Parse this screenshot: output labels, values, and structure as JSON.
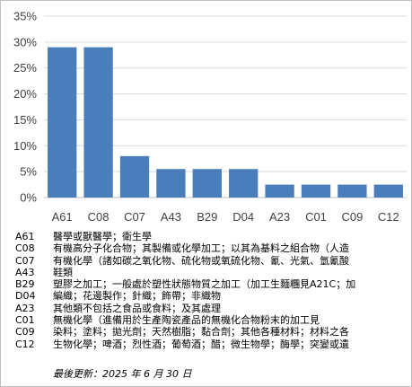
{
  "chart_data": {
    "type": "bar",
    "title": "",
    "xlabel": "",
    "ylabel": "",
    "categories": [
      "A61",
      "C08",
      "C07",
      "A43",
      "B29",
      "D04",
      "A23",
      "C01",
      "C09",
      "C12"
    ],
    "values": [
      0.29,
      0.29,
      0.08,
      0.055,
      0.055,
      0.055,
      0.025,
      0.025,
      0.025,
      0.025
    ],
    "ylim": [
      0,
      0.35
    ],
    "y_ticks": [
      "0%",
      "5%",
      "10%",
      "15%",
      "20%",
      "25%",
      "30%",
      "35%"
    ],
    "grid": "horizontal",
    "bar_color": "#4a7ebb",
    "grid_color": "#d9d9d9"
  },
  "legend": [
    {
      "code": "A61",
      "text": "醫學或獸醫學；衛生學"
    },
    {
      "code": "C08",
      "text": "有機高分子化合物；其製備或化學加工；以其為基料之組合物（人造"
    },
    {
      "code": "C07",
      "text": "有機化學（諸如碳之氧化物、硫化物或氧硫化物、氰、光氣、氫氰酸"
    },
    {
      "code": "A43",
      "text": "鞋類"
    },
    {
      "code": "B29",
      "text": "塑膠之加工；一般處於塑性狀態物質之加工（加工生麵糰見A21C；加"
    },
    {
      "code": "D04",
      "text": "編織；花邊製作；針織；飾帶；非織物"
    },
    {
      "code": "A23",
      "text": "其他類不包括之食品或食料；及其處理"
    },
    {
      "code": "C01",
      "text": "無機化學（進備用於生產陶瓷產品的無機化合物粉末的加工見"
    },
    {
      "code": "C09",
      "text": "染料；塗料；拋光劑；天然樹脂；黏合劑；其他各種材料；材料之各"
    },
    {
      "code": "C12",
      "text": "生物化學；啤酒；烈性酒；葡萄酒；醋；微生物學；酶學；突變或遺"
    }
  ],
  "footer": {
    "updated": "最後更新：2025 年 6 月 30 日"
  }
}
